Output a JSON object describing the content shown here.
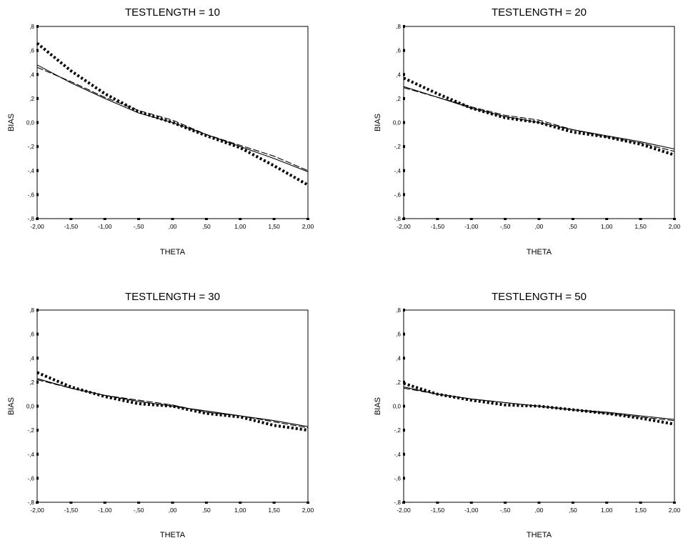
{
  "chart_data": [
    {
      "type": "line",
      "title": "TESTLENGTH = 10",
      "xlabel": "THETA",
      "ylabel": "BIAS",
      "xlim": [
        -2,
        2
      ],
      "ylim": [
        -0.8,
        0.8
      ],
      "x_ticks": [
        "-2,00",
        "-1,50",
        "-1,00",
        "-,50",
        ",00",
        ",50",
        "1,00",
        "1,50",
        "2,00"
      ],
      "y_ticks": [
        ",8",
        ",6",
        ",4",
        ",2",
        "0,0",
        "-,2",
        "-,4",
        "-,6",
        "-,8"
      ],
      "grid": false,
      "series": [
        {
          "style": "solid",
          "x": [
            -2,
            -1.5,
            -1,
            -0.5,
            0,
            0.5,
            1,
            1.5,
            2
          ],
          "y": [
            0.48,
            0.33,
            0.2,
            0.08,
            0.0,
            -0.1,
            -0.2,
            -0.3,
            -0.41
          ]
        },
        {
          "style": "dashed",
          "x": [
            -2,
            -1.5,
            -1,
            -0.5,
            0,
            0.5,
            1,
            1.5,
            2
          ],
          "y": [
            0.46,
            0.34,
            0.21,
            0.1,
            0.02,
            -0.1,
            -0.19,
            -0.28,
            -0.4
          ]
        },
        {
          "style": "dotted",
          "x": [
            -2,
            -1.5,
            -1,
            -0.5,
            0,
            0.5,
            1,
            1.5,
            2
          ],
          "y": [
            0.66,
            0.43,
            0.24,
            0.09,
            0.0,
            -0.11,
            -0.21,
            -0.36,
            -0.52
          ]
        }
      ]
    },
    {
      "type": "line",
      "title": "TESTLENGTH = 20",
      "xlabel": "THETA",
      "ylabel": "BIAS",
      "xlim": [
        -2,
        2
      ],
      "ylim": [
        -0.8,
        0.8
      ],
      "x_ticks": [
        "-2,00",
        "-1,50",
        "-1,00",
        "-,50",
        ",00",
        ",50",
        "1,00",
        "1,50",
        "2,00"
      ],
      "y_ticks": [
        ",8",
        ",6",
        ",4",
        ",2",
        "0,0",
        "-,2",
        "-,4",
        "-,6",
        "-,8"
      ],
      "grid": false,
      "series": [
        {
          "style": "solid",
          "x": [
            -2,
            -1.5,
            -1,
            -0.5,
            0,
            0.5,
            1,
            1.5,
            2
          ],
          "y": [
            0.3,
            0.21,
            0.12,
            0.05,
            0.0,
            -0.06,
            -0.11,
            -0.16,
            -0.22
          ]
        },
        {
          "style": "dashed",
          "x": [
            -2,
            -1.5,
            -1,
            -0.5,
            0,
            0.5,
            1,
            1.5,
            2
          ],
          "y": [
            0.29,
            0.21,
            0.13,
            0.06,
            0.02,
            -0.06,
            -0.12,
            -0.17,
            -0.24
          ]
        },
        {
          "style": "dotted",
          "x": [
            -2,
            -1.5,
            -1,
            -0.5,
            0,
            0.5,
            1,
            1.5,
            2
          ],
          "y": [
            0.37,
            0.24,
            0.12,
            0.04,
            0.0,
            -0.08,
            -0.12,
            -0.18,
            -0.27
          ]
        }
      ]
    },
    {
      "type": "line",
      "title": "TESTLENGTH = 30",
      "xlabel": "THETA",
      "ylabel": "BIAS",
      "xlim": [
        -2,
        2
      ],
      "ylim": [
        -0.8,
        0.8
      ],
      "x_ticks": [
        "-2,00",
        "-1,50",
        "-1,00",
        "-,50",
        ",00",
        ",50",
        "1,00",
        "1,50",
        "2,00"
      ],
      "y_ticks": [
        ",8",
        ",6",
        ",4",
        ",2",
        "0,0",
        "-,2",
        "-,4",
        "-,6",
        "-,8"
      ],
      "grid": false,
      "series": [
        {
          "style": "solid",
          "x": [
            -2,
            -1.5,
            -1,
            -0.5,
            0,
            0.5,
            1,
            1.5,
            2
          ],
          "y": [
            0.23,
            0.15,
            0.09,
            0.04,
            0.0,
            -0.04,
            -0.08,
            -0.12,
            -0.17
          ]
        },
        {
          "style": "dashed",
          "x": [
            -2,
            -1.5,
            -1,
            -0.5,
            0,
            0.5,
            1,
            1.5,
            2
          ],
          "y": [
            0.22,
            0.15,
            0.09,
            0.05,
            0.01,
            -0.05,
            -0.08,
            -0.13,
            -0.18
          ]
        },
        {
          "style": "dotted",
          "x": [
            -2,
            -1.5,
            -1,
            -0.5,
            0,
            0.5,
            1,
            1.5,
            2
          ],
          "y": [
            0.28,
            0.16,
            0.08,
            0.02,
            0.0,
            -0.06,
            -0.09,
            -0.16,
            -0.2
          ]
        }
      ]
    },
    {
      "type": "line",
      "title": "TESTLENGTH = 50",
      "xlabel": "THETA",
      "ylabel": "BIAS",
      "xlim": [
        -2,
        2
      ],
      "ylim": [
        -0.8,
        0.8
      ],
      "x_ticks": [
        "-2,00",
        "-1,50",
        "-1,00",
        "-,50",
        ",00",
        ",50",
        "1,00",
        "1,50",
        "2,00"
      ],
      "y_ticks": [
        ",8",
        ",6",
        ",4",
        ",2",
        "0,0",
        "-,2",
        "-,4",
        "-,6",
        "-,8"
      ],
      "grid": false,
      "series": [
        {
          "style": "solid",
          "x": [
            -2,
            -1.5,
            -1,
            -0.5,
            0,
            0.5,
            1,
            1.5,
            2
          ],
          "y": [
            0.16,
            0.1,
            0.06,
            0.03,
            0.0,
            -0.03,
            -0.05,
            -0.08,
            -0.11
          ]
        },
        {
          "style": "dashed",
          "x": [
            -2,
            -1.5,
            -1,
            -0.5,
            0,
            0.5,
            1,
            1.5,
            2
          ],
          "y": [
            0.15,
            0.1,
            0.06,
            0.03,
            0.0,
            -0.03,
            -0.06,
            -0.09,
            -0.12
          ]
        },
        {
          "style": "dotted",
          "x": [
            -2,
            -1.5,
            -1,
            -0.5,
            0,
            0.5,
            1,
            1.5,
            2
          ],
          "y": [
            0.19,
            0.1,
            0.05,
            0.01,
            0.0,
            -0.03,
            -0.06,
            -0.1,
            -0.15
          ]
        }
      ]
    }
  ]
}
